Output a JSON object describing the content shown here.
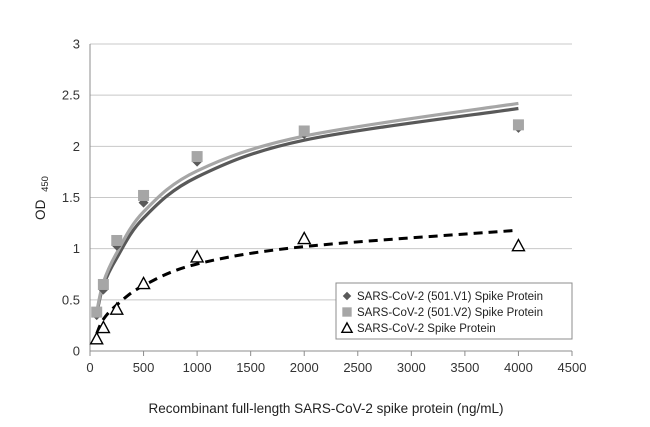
{
  "chart_data": {
    "type": "scatter",
    "title": "",
    "xlabel": "Recombinant full-length SARS-CoV-2 spike protein (ng/mL)",
    "ylabel_main": "OD",
    "ylabel_sub": "450",
    "xlim": [
      0,
      4500
    ],
    "ylim": [
      0,
      3
    ],
    "x_ticks": [
      "0",
      "500",
      "1000",
      "1500",
      "2000",
      "2500",
      "3000",
      "3500",
      "4000",
      "4500"
    ],
    "y_ticks": [
      "0",
      "0.5",
      "1",
      "1.5",
      "2",
      "2.5",
      "3"
    ],
    "grid": "horizontal",
    "legend_position": "bottom-right",
    "series": [
      {
        "name": "SARS-CoV-2  (501.V1) Spike Protein",
        "marker": "diamond",
        "color": "#595959",
        "line_style": "solid",
        "x": [
          62.5,
          125,
          250,
          500,
          1000,
          2000,
          4000
        ],
        "y": [
          0.35,
          0.6,
          1.03,
          1.45,
          1.85,
          2.12,
          2.18
        ],
        "fit_y": [
          0.36,
          0.64,
          0.91,
          1.3,
          1.7,
          2.06,
          2.37
        ]
      },
      {
        "name": "SARS-CoV-2  (501.V2) Spike Protein",
        "marker": "square",
        "color": "#a6a6a6",
        "line_style": "solid",
        "x": [
          62.5,
          125,
          250,
          500,
          1000,
          2000,
          4000
        ],
        "y": [
          0.38,
          0.65,
          1.08,
          1.52,
          1.9,
          2.15,
          2.21
        ],
        "fit_y": [
          0.38,
          0.67,
          0.96,
          1.36,
          1.76,
          2.1,
          2.42
        ]
      },
      {
        "name": "SARS-CoV-2  Spike Protein",
        "marker": "triangle-open",
        "color": "#000000",
        "line_style": "dashed",
        "x": [
          62.5,
          125,
          250,
          500,
          1000,
          2000,
          4000
        ],
        "y": [
          0.12,
          0.23,
          0.41,
          0.66,
          0.92,
          1.1,
          1.03
        ],
        "fit_y": [
          0.17,
          0.31,
          0.45,
          0.64,
          0.85,
          1.02,
          1.18
        ]
      }
    ]
  }
}
